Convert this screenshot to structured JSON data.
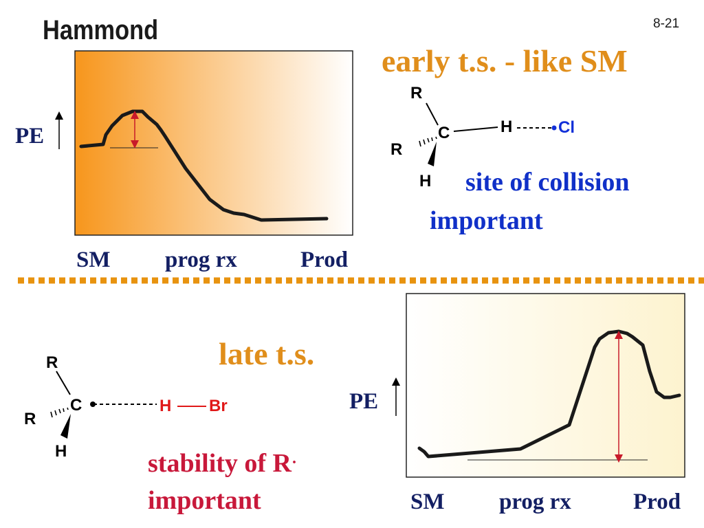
{
  "slide": {
    "title": "Hammond",
    "number": "8-21"
  },
  "top": {
    "heading": "early t.s. - like SM",
    "note_line1": "site of collision",
    "note_line2": "important",
    "plot": {
      "y_label": "PE",
      "x_labels": [
        "SM",
        "prog rx",
        "Prod"
      ],
      "gradient_colors": [
        "#f7961c",
        "#ffffff"
      ]
    },
    "molecule": {
      "carbon": "C",
      "substituents": [
        "R",
        "R",
        "H"
      ],
      "bonded_atom": "H",
      "partner_atom": "Cl",
      "partner_color": "#1230d8"
    }
  },
  "bottom": {
    "heading": "late t.s.",
    "note_line1": "stability of R",
    "note_radical_dot": "·",
    "note_line2": "important",
    "plot": {
      "y_label": "PE",
      "x_labels": [
        "SM",
        "prog rx",
        "Prod"
      ],
      "gradient_colors": [
        "#ffffff",
        "#fdf3cf"
      ]
    },
    "molecule": {
      "carbon": "C",
      "substituents": [
        "R",
        "R",
        "H"
      ],
      "partner_atom_1": "H",
      "partner_bond": "—",
      "partner_atom_2": "Br",
      "partner_color": "#e01818"
    }
  },
  "colors": {
    "accent_orange": "#e08e1b",
    "divider": "#e8930f",
    "note_blue": "#1030c8",
    "axis_navy": "#131f63",
    "note_red": "#c8183a",
    "arrow_red": "#c81a2a"
  }
}
